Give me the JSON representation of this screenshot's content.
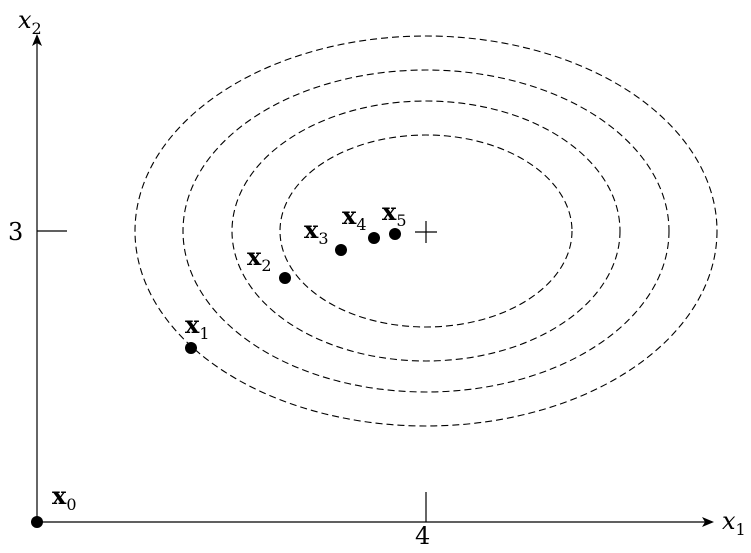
{
  "diagram": {
    "x_axis_label": {
      "base": "x",
      "sub": "1"
    },
    "y_axis_label": {
      "base": "x",
      "sub": "2"
    },
    "x_tick_label": "4",
    "y_tick_label": "3",
    "contours": {
      "count": 4,
      "style": "dashed"
    },
    "minimum_marker": "+",
    "iterates": [
      {
        "base": "x",
        "sub": "0"
      },
      {
        "base": "x",
        "sub": "1"
      },
      {
        "base": "x",
        "sub": "2"
      },
      {
        "base": "x",
        "sub": "3"
      },
      {
        "base": "x",
        "sub": "4"
      },
      {
        "base": "x",
        "sub": "5"
      }
    ]
  }
}
